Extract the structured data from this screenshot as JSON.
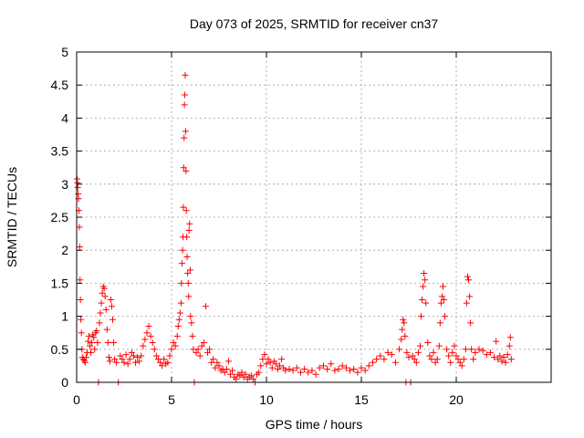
{
  "chart_data": {
    "type": "scatter",
    "title": "Day 073 of 2025, SRMTID for receiver cn37",
    "xlabel": "GPS time / hours",
    "ylabel": "SRMTID / TECUs",
    "xlim": [
      0,
      25
    ],
    "ylim": [
      0,
      5
    ],
    "xticks": [
      0,
      5,
      10,
      15,
      20
    ],
    "xtick_labels": [
      "0",
      "5",
      "10",
      "15",
      "20"
    ],
    "yticks": [
      0,
      0.5,
      1,
      1.5,
      2,
      2.5,
      3,
      3.5,
      4,
      4.5,
      5
    ],
    "ytick_labels": [
      "0",
      "0.5",
      "1",
      "1.5",
      "2",
      "2.5",
      "3",
      "3.5",
      "4",
      "4.5",
      "5"
    ],
    "grid": true,
    "marker": "plus",
    "color": "#ff0000",
    "series": [
      {
        "name": "SRMTID",
        "points": [
          [
            0.02,
            3.08
          ],
          [
            0.04,
            3.02
          ],
          [
            0.06,
            2.95
          ],
          [
            0.08,
            2.85
          ],
          [
            0.1,
            2.78
          ],
          [
            0.12,
            2.6
          ],
          [
            0.14,
            2.35
          ],
          [
            0.16,
            2.05
          ],
          [
            0.18,
            1.55
          ],
          [
            0.2,
            1.25
          ],
          [
            0.22,
            0.95
          ],
          [
            0.25,
            0.75
          ],
          [
            0.28,
            0.5
          ],
          [
            0.3,
            0.38
          ],
          [
            0.35,
            0.35
          ],
          [
            0.4,
            0.33
          ],
          [
            0.45,
            0.3
          ],
          [
            0.5,
            0.38
          ],
          [
            0.55,
            0.45
          ],
          [
            0.6,
            0.62
          ],
          [
            0.65,
            0.7
          ],
          [
            0.7,
            0.55
          ],
          [
            0.75,
            0.45
          ],
          [
            0.8,
            0.6
          ],
          [
            0.85,
            0.72
          ],
          [
            0.9,
            0.68
          ],
          [
            0.95,
            0.5
          ],
          [
            1.0,
            0.75
          ],
          [
            1.05,
            0.78
          ],
          [
            1.1,
            0.6
          ],
          [
            1.15,
            0.0
          ],
          [
            1.2,
            0.9
          ],
          [
            1.25,
            1.05
          ],
          [
            1.3,
            1.2
          ],
          [
            1.35,
            1.35
          ],
          [
            1.4,
            1.45
          ],
          [
            1.45,
            1.42
          ],
          [
            1.5,
            1.3
          ],
          [
            1.55,
            1.1
          ],
          [
            1.6,
            0.8
          ],
          [
            1.65,
            0.6
          ],
          [
            1.7,
            0.38
          ],
          [
            1.75,
            0.32
          ],
          [
            1.8,
            1.25
          ],
          [
            1.85,
            1.15
          ],
          [
            1.9,
            0.95
          ],
          [
            1.95,
            0.6
          ],
          [
            2.0,
            0.35
          ],
          [
            2.1,
            0.3
          ],
          [
            2.2,
            0.0
          ],
          [
            2.3,
            0.4
          ],
          [
            2.4,
            0.35
          ],
          [
            2.5,
            0.3
          ],
          [
            2.6,
            0.42
          ],
          [
            2.7,
            0.28
          ],
          [
            2.8,
            0.35
          ],
          [
            2.9,
            0.45
          ],
          [
            3.0,
            0.4
          ],
          [
            3.1,
            0.3
          ],
          [
            3.2,
            0.38
          ],
          [
            3.3,
            0.32
          ],
          [
            3.4,
            0.4
          ],
          [
            3.5,
            0.55
          ],
          [
            3.6,
            0.65
          ],
          [
            3.7,
            0.75
          ],
          [
            3.8,
            0.85
          ],
          [
            3.9,
            0.7
          ],
          [
            4.0,
            0.6
          ],
          [
            4.1,
            0.5
          ],
          [
            4.2,
            0.4
          ],
          [
            4.3,
            0.35
          ],
          [
            4.4,
            0.3
          ],
          [
            4.5,
            0.25
          ],
          [
            4.6,
            0.35
          ],
          [
            4.7,
            0.28
          ],
          [
            4.8,
            0.3
          ],
          [
            4.9,
            0.4
          ],
          [
            5.0,
            0.5
          ],
          [
            5.1,
            0.6
          ],
          [
            5.2,
            0.55
          ],
          [
            5.3,
            0.7
          ],
          [
            5.35,
            0.85
          ],
          [
            5.4,
            0.95
          ],
          [
            5.45,
            1.05
          ],
          [
            5.5,
            1.2
          ],
          [
            5.52,
            1.5
          ],
          [
            5.55,
            1.8
          ],
          [
            5.58,
            2.0
          ],
          [
            5.6,
            2.2
          ],
          [
            5.62,
            2.65
          ],
          [
            5.64,
            3.25
          ],
          [
            5.66,
            3.7
          ],
          [
            5.68,
            4.2
          ],
          [
            5.7,
            4.35
          ],
          [
            5.72,
            4.65
          ],
          [
            5.74,
            3.8
          ],
          [
            5.76,
            3.2
          ],
          [
            5.78,
            2.6
          ],
          [
            5.8,
            2.2
          ],
          [
            5.82,
            1.9
          ],
          [
            5.85,
            1.65
          ],
          [
            5.88,
            1.5
          ],
          [
            5.9,
            1.3
          ],
          [
            5.92,
            2.3
          ],
          [
            5.95,
            2.4
          ],
          [
            5.98,
            1.7
          ],
          [
            6.0,
            1.0
          ],
          [
            6.05,
            0.9
          ],
          [
            6.1,
            0.7
          ],
          [
            6.15,
            0.5
          ],
          [
            6.2,
            0.0
          ],
          [
            6.3,
            0.45
          ],
          [
            6.4,
            0.5
          ],
          [
            6.5,
            0.4
          ],
          [
            6.6,
            0.55
          ],
          [
            6.7,
            0.6
          ],
          [
            6.8,
            1.15
          ],
          [
            6.9,
            0.45
          ],
          [
            7.0,
            0.5
          ],
          [
            7.1,
            0.3
          ],
          [
            7.2,
            0.35
          ],
          [
            7.3,
            0.22
          ],
          [
            7.4,
            0.3
          ],
          [
            7.5,
            0.25
          ],
          [
            7.6,
            0.18
          ],
          [
            7.7,
            0.2
          ],
          [
            7.8,
            0.15
          ],
          [
            7.9,
            0.2
          ],
          [
            8.0,
            0.32
          ],
          [
            8.1,
            0.12
          ],
          [
            8.2,
            0.18
          ],
          [
            8.3,
            0.08
          ],
          [
            8.4,
            0.05
          ],
          [
            8.5,
            0.12
          ],
          [
            8.6,
            0.1
          ],
          [
            8.7,
            0.15
          ],
          [
            8.8,
            0.08
          ],
          [
            8.9,
            0.12
          ],
          [
            9.0,
            0.05
          ],
          [
            9.1,
            0.08
          ],
          [
            9.2,
            0.1
          ],
          [
            9.3,
            0.05
          ],
          [
            9.4,
            0.0
          ],
          [
            9.5,
            0.12
          ],
          [
            9.6,
            0.15
          ],
          [
            9.7,
            0.25
          ],
          [
            9.8,
            0.35
          ],
          [
            9.9,
            0.42
          ],
          [
            10.0,
            0.28
          ],
          [
            10.1,
            0.35
          ],
          [
            10.2,
            0.3
          ],
          [
            10.3,
            0.22
          ],
          [
            10.4,
            0.32
          ],
          [
            10.5,
            0.28
          ],
          [
            10.6,
            0.2
          ],
          [
            10.7,
            0.25
          ],
          [
            10.8,
            0.35
          ],
          [
            10.9,
            0.22
          ],
          [
            11.0,
            0.18
          ],
          [
            11.2,
            0.2
          ],
          [
            11.4,
            0.18
          ],
          [
            11.6,
            0.22
          ],
          [
            11.8,
            0.15
          ],
          [
            12.0,
            0.2
          ],
          [
            12.2,
            0.15
          ],
          [
            12.4,
            0.18
          ],
          [
            12.6,
            0.12
          ],
          [
            12.8,
            0.22
          ],
          [
            13.0,
            0.25
          ],
          [
            13.2,
            0.2
          ],
          [
            13.4,
            0.28
          ],
          [
            13.6,
            0.18
          ],
          [
            13.8,
            0.2
          ],
          [
            14.0,
            0.25
          ],
          [
            14.2,
            0.22
          ],
          [
            14.4,
            0.18
          ],
          [
            14.6,
            0.2
          ],
          [
            14.8,
            0.15
          ],
          [
            15.0,
            0.22
          ],
          [
            15.2,
            0.18
          ],
          [
            15.4,
            0.25
          ],
          [
            15.6,
            0.3
          ],
          [
            15.8,
            0.35
          ],
          [
            16.0,
            0.4
          ],
          [
            16.2,
            0.35
          ],
          [
            16.4,
            0.45
          ],
          [
            16.6,
            0.42
          ],
          [
            16.8,
            0.3
          ],
          [
            17.0,
            0.5
          ],
          [
            17.1,
            0.65
          ],
          [
            17.15,
            0.8
          ],
          [
            17.2,
            0.95
          ],
          [
            17.25,
            0.9
          ],
          [
            17.3,
            0.7
          ],
          [
            17.35,
            0.0
          ],
          [
            17.4,
            0.45
          ],
          [
            17.5,
            0.38
          ],
          [
            17.6,
            0.0
          ],
          [
            17.7,
            0.4
          ],
          [
            17.8,
            0.35
          ],
          [
            17.9,
            0.3
          ],
          [
            18.0,
            0.45
          ],
          [
            18.1,
            0.55
          ],
          [
            18.15,
            1.0
          ],
          [
            18.2,
            1.25
          ],
          [
            18.25,
            1.45
          ],
          [
            18.3,
            1.65
          ],
          [
            18.35,
            1.55
          ],
          [
            18.4,
            1.2
          ],
          [
            18.5,
            0.6
          ],
          [
            18.6,
            0.4
          ],
          [
            18.7,
            0.35
          ],
          [
            18.8,
            0.45
          ],
          [
            18.9,
            0.3
          ],
          [
            19.0,
            0.35
          ],
          [
            19.1,
            0.55
          ],
          [
            19.15,
            0.9
          ],
          [
            19.2,
            1.2
          ],
          [
            19.25,
            1.3
          ],
          [
            19.3,
            1.45
          ],
          [
            19.35,
            1.25
          ],
          [
            19.4,
            1.0
          ],
          [
            19.5,
            0.5
          ],
          [
            19.6,
            0.4
          ],
          [
            19.7,
            0.3
          ],
          [
            19.8,
            0.45
          ],
          [
            19.9,
            0.55
          ],
          [
            20.0,
            0.4
          ],
          [
            20.1,
            0.35
          ],
          [
            20.2,
            0.3
          ],
          [
            20.3,
            0.25
          ],
          [
            20.4,
            0.35
          ],
          [
            20.5,
            0.5
          ],
          [
            20.55,
            1.2
          ],
          [
            20.6,
            1.6
          ],
          [
            20.65,
            1.55
          ],
          [
            20.7,
            1.3
          ],
          [
            20.75,
            0.9
          ],
          [
            20.8,
            0.5
          ],
          [
            20.9,
            0.35
          ],
          [
            21.0,
            0.45
          ],
          [
            21.2,
            0.5
          ],
          [
            21.4,
            0.48
          ],
          [
            21.6,
            0.42
          ],
          [
            21.8,
            0.45
          ],
          [
            22.0,
            0.38
          ],
          [
            22.1,
            0.62
          ],
          [
            22.2,
            0.35
          ],
          [
            22.3,
            0.4
          ],
          [
            22.4,
            0.32
          ],
          [
            22.5,
            0.38
          ],
          [
            22.6,
            0.3
          ],
          [
            22.7,
            0.42
          ],
          [
            22.8,
            0.55
          ],
          [
            22.85,
            0.68
          ],
          [
            22.9,
            0.35
          ]
        ]
      }
    ]
  }
}
